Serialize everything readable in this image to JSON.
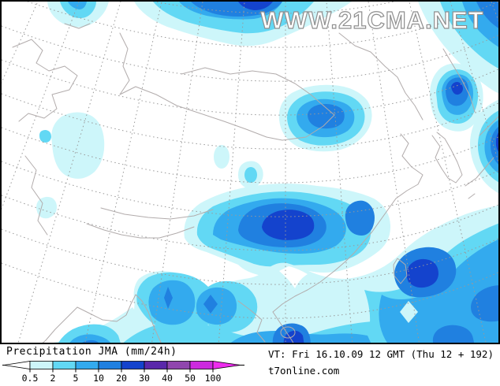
{
  "watermark": "WWW.21CMA.NET",
  "legend": {
    "title": "Precipitation JMA (mm/24h)",
    "ticks": [
      "0.5",
      "2",
      "5",
      "10",
      "20",
      "30",
      "40",
      "50",
      "100"
    ],
    "segment_colors": [
      "#cdf6fa",
      "#62d8f4",
      "#33aaee",
      "#2080e0",
      "#1443cd",
      "#5a28aa",
      "#9046ae",
      "#cc2ade"
    ],
    "underflow_color": "#ffffff",
    "overflow_color": "#ee2cee"
  },
  "footer": {
    "vt": "VT: Fri 16.10.09 12 GMT (Thu 12 + 192)",
    "site": "t7online.com"
  },
  "map": {
    "units": "mm/24h",
    "model": "JMA",
    "level_colors": {
      "1": "#cdf6fa",
      "2": "#62d8f4",
      "3": "#33aaee",
      "4": "#2080e0",
      "5": "#1443cd"
    },
    "grid_color": "#999999",
    "coast_color": "#b2acac"
  }
}
